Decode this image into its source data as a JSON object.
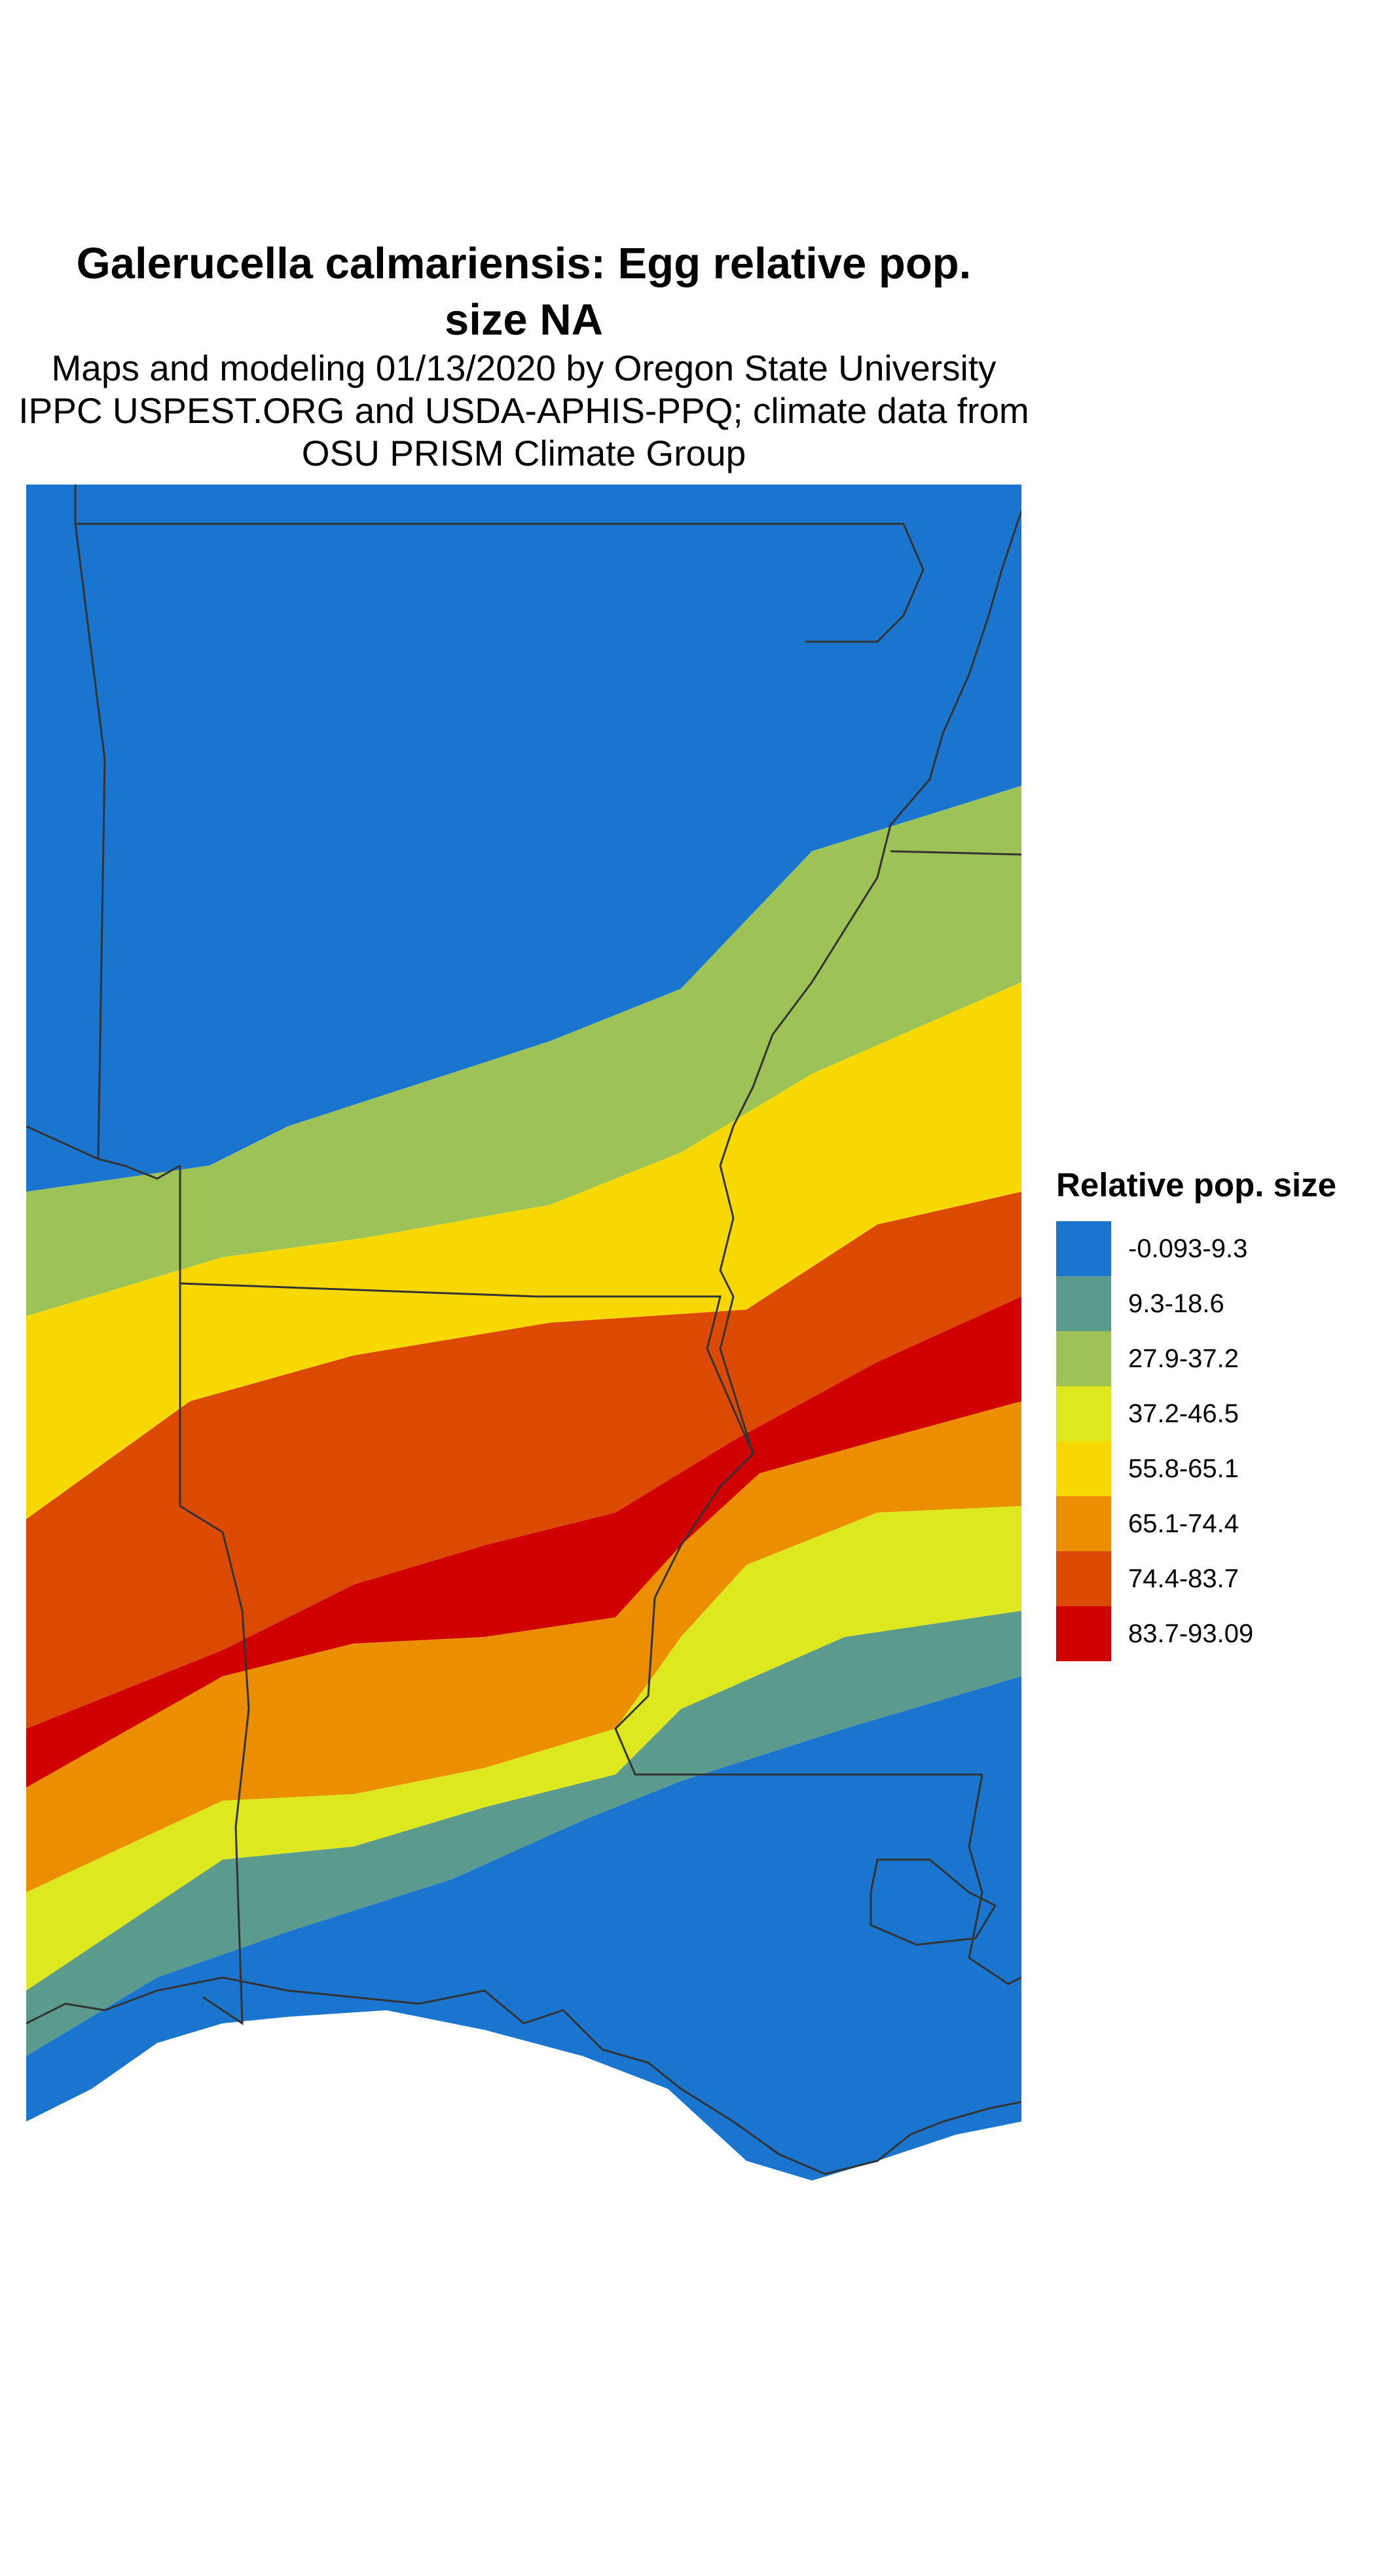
{
  "title_line1": "Galerucella calmariensis: Egg relative pop.",
  "title_line2": "size NA",
  "subtitle_line1": "Maps and modeling 01/13/2020 by Oregon State University",
  "subtitle_line2": "IPPC USPEST.ORG and USDA-APHIS-PPQ; climate data from",
  "subtitle_line3": "OSU PRISM Climate Group",
  "legend": {
    "title": "Relative pop. size",
    "items": [
      {
        "label": "-0.093-9.3",
        "color": "#1a75cf"
      },
      {
        "label": "9.3-18.6",
        "color": "#5a9b8e"
      },
      {
        "label": "27.9-37.2",
        "color": "#9dc356"
      },
      {
        "label": "37.2-46.5",
        "color": "#dde81e"
      },
      {
        "label": "55.8-65.1",
        "color": "#f7d800"
      },
      {
        "label": "65.1-74.4",
        "color": "#eb8e00"
      },
      {
        "label": "74.4-83.7",
        "color": "#dc4900"
      },
      {
        "label": "83.7-93.09",
        "color": "#d10000"
      }
    ]
  },
  "map": {
    "background_color": "#ffffff",
    "border_color": "#333333"
  }
}
